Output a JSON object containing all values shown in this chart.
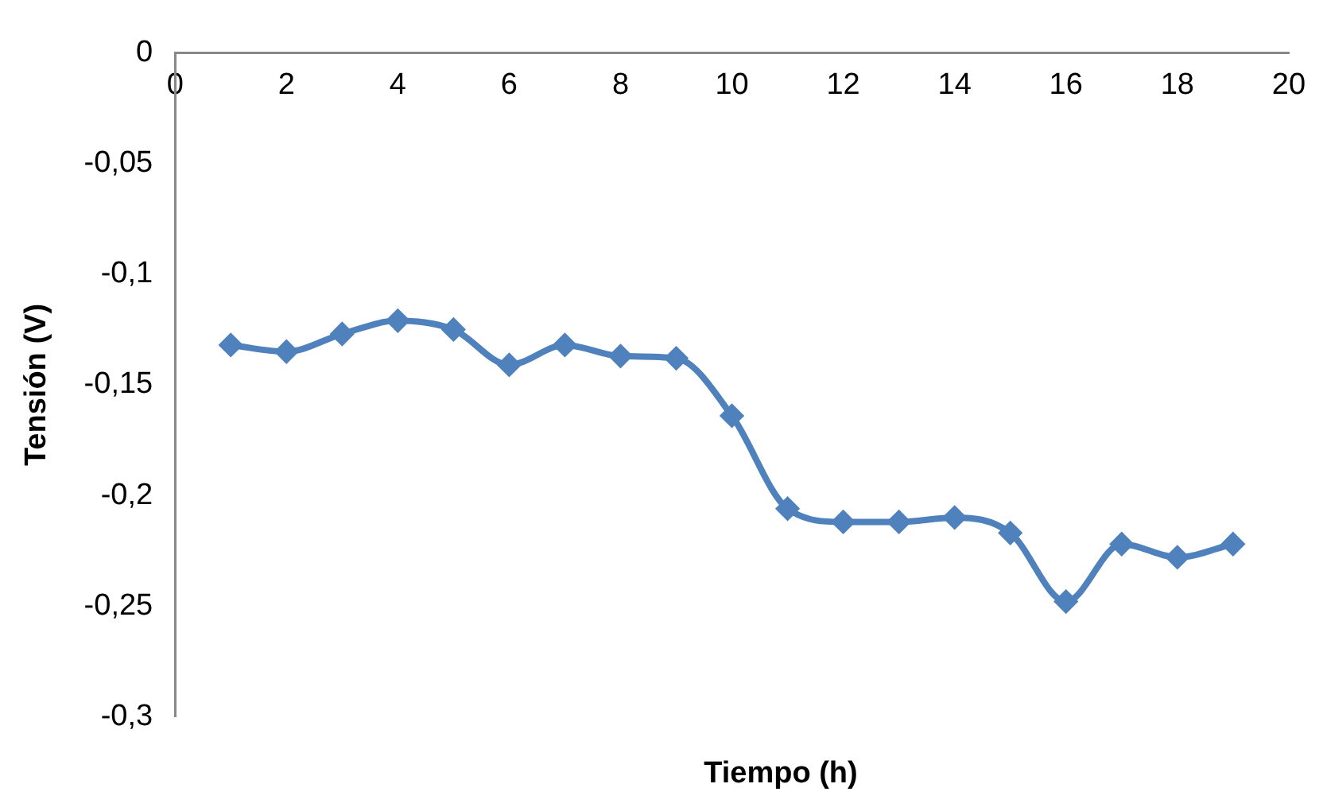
{
  "chart_data": {
    "type": "line",
    "xlabel": "Tiempo (h)",
    "ylabel": "Tensión (V)",
    "x": [
      1,
      2,
      3,
      4,
      5,
      6,
      7,
      8,
      9,
      10,
      11,
      12,
      13,
      14,
      15,
      16,
      17,
      18,
      19
    ],
    "series": [
      {
        "color": "#4f81bd",
        "values": [
          -0.132,
          -0.135,
          -0.127,
          -0.121,
          -0.125,
          -0.141,
          -0.132,
          -0.137,
          -0.138,
          -0.164,
          -0.206,
          -0.212,
          -0.212,
          -0.21,
          -0.217,
          -0.248,
          -0.222,
          -0.228,
          -0.222
        ]
      }
    ],
    "xlim": [
      0,
      20
    ],
    "xticks": [
      0,
      2,
      4,
      6,
      8,
      10,
      12,
      14,
      16,
      18,
      20
    ],
    "ylim": [
      -0.3,
      0
    ],
    "yticks": [
      {
        "value": -0.3,
        "label": "-0,3"
      },
      {
        "value": -0.25,
        "label": "-0,25"
      },
      {
        "value": -0.2,
        "label": "-0,2"
      },
      {
        "value": -0.15,
        "label": "-0,15"
      },
      {
        "value": -0.1,
        "label": "-0,1"
      },
      {
        "value": -0.05,
        "label": "-0,05"
      },
      0
    ],
    "grid": false,
    "legend": false,
    "marker": "diamond",
    "line_style": "solid"
  }
}
